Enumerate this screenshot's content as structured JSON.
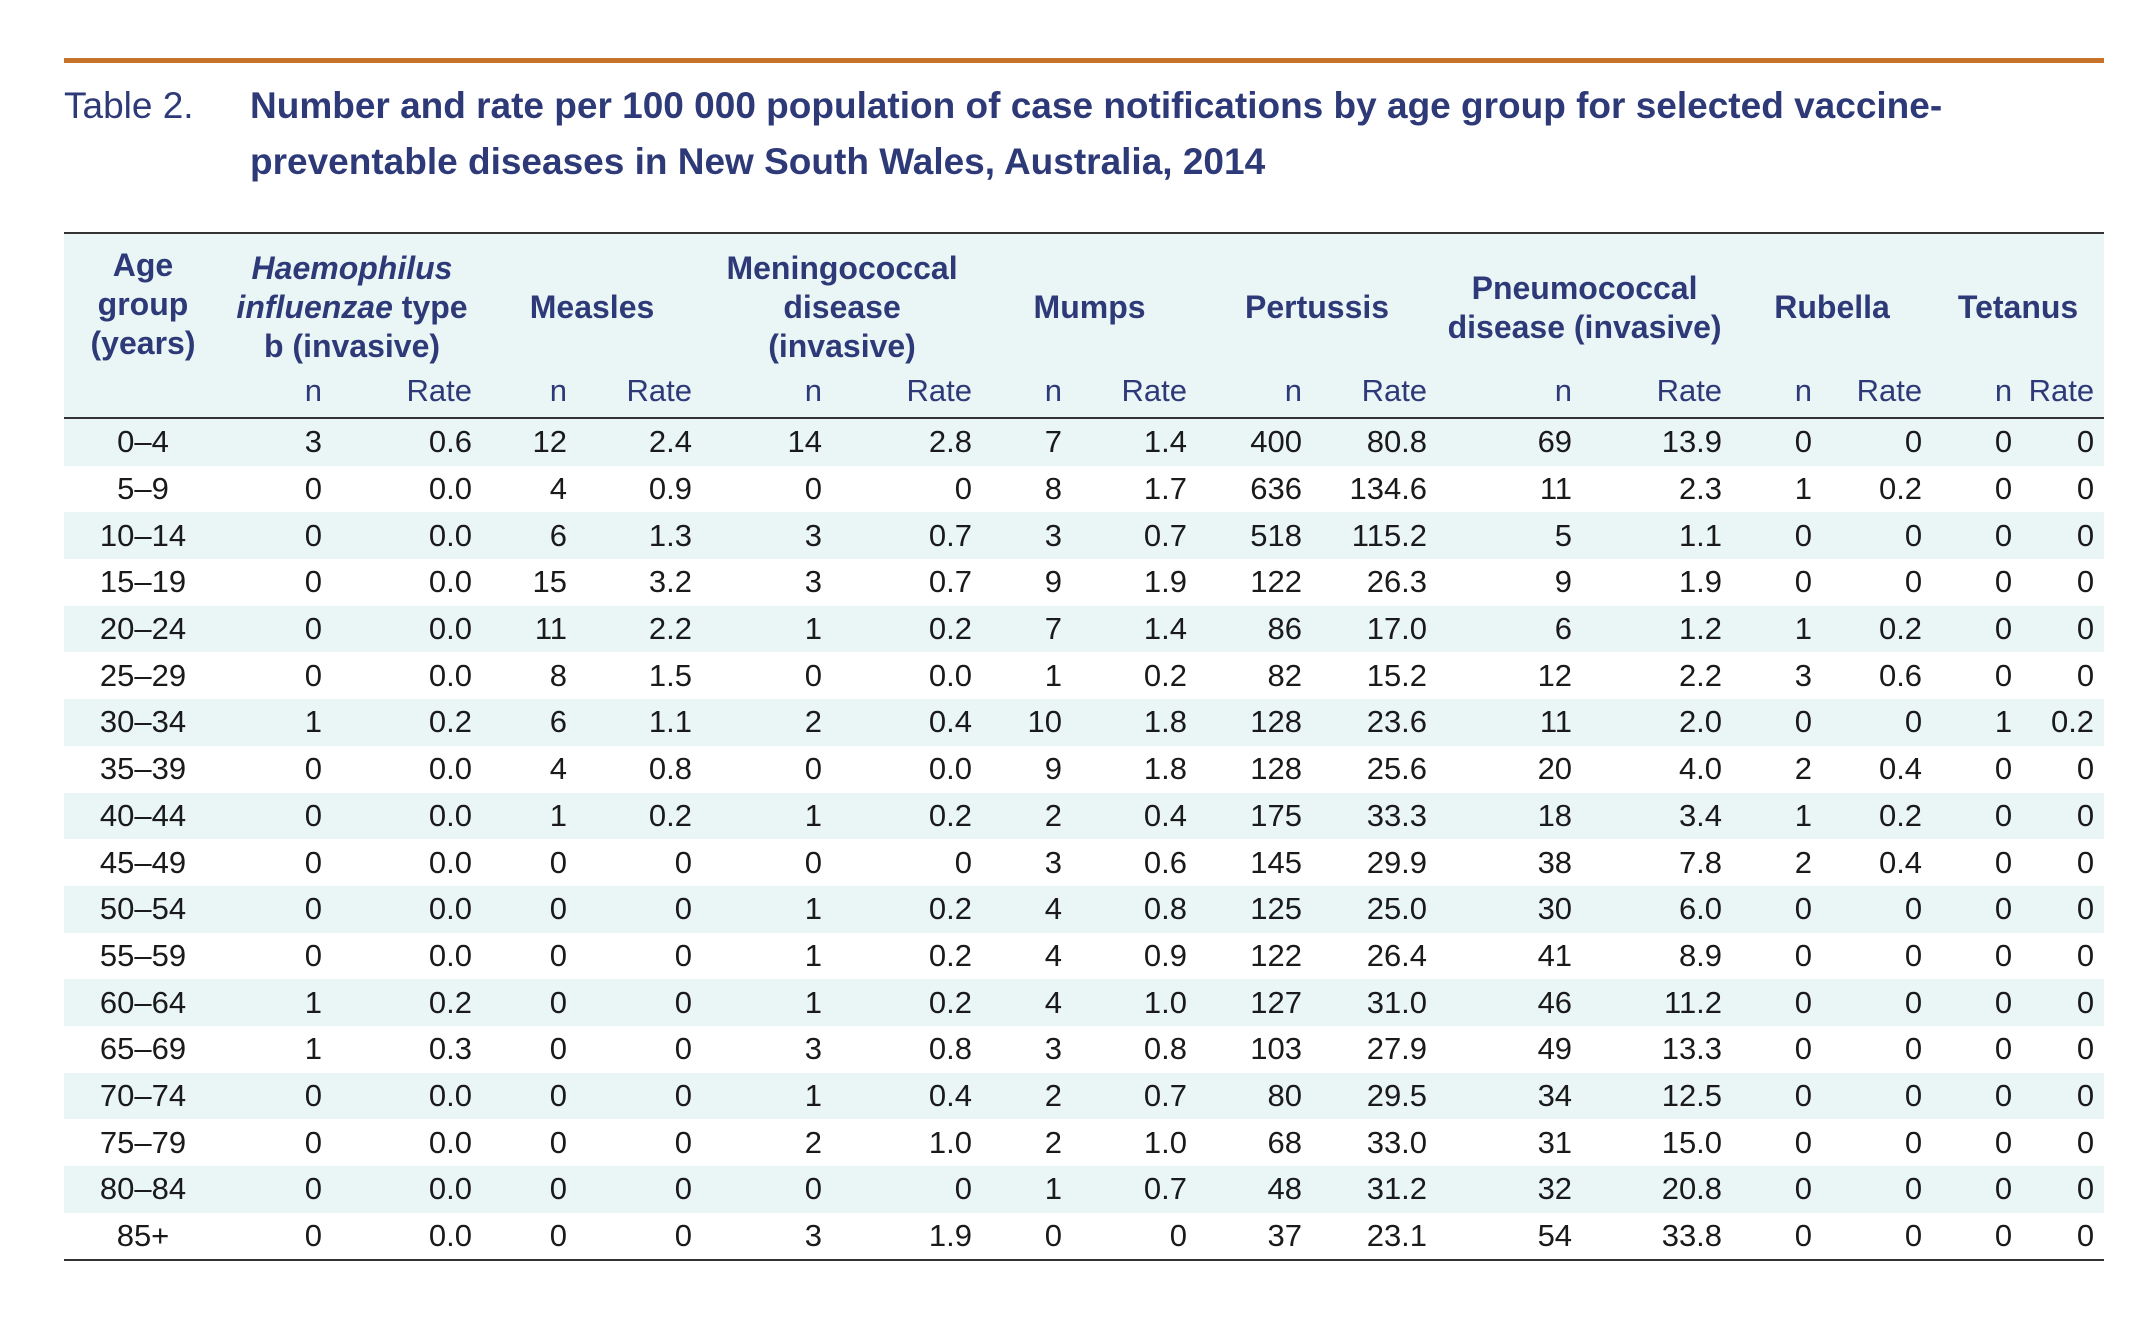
{
  "caption": {
    "label": "Table 2.",
    "title": "Number and rate per 100 000 population of case notifications by age group for selected vaccine-preventable diseases in New South Wales, Australia, 2014"
  },
  "header": {
    "age": "Age group (years)",
    "hib_italic": "Haemophilus influenzae",
    "hib_rest": " type b (invasive)",
    "measles": "Measles",
    "meningococcal": "Meningococcal disease (invasive)",
    "mumps": "Mumps",
    "pertussis": "Pertussis",
    "pneumococcal": "Pneumococcal disease (invasive)",
    "rubella": "Rubella",
    "tetanus": "Tetanus",
    "n": "n",
    "rate": "Rate"
  },
  "rows": [
    [
      "0–4",
      "3",
      "0.6",
      "12",
      "2.4",
      "14",
      "2.8",
      "7",
      "1.4",
      "400",
      "80.8",
      "69",
      "13.9",
      "0",
      "0",
      "0",
      "0"
    ],
    [
      "5–9",
      "0",
      "0.0",
      "4",
      "0.9",
      "0",
      "0",
      "8",
      "1.7",
      "636",
      "134.6",
      "11",
      "2.3",
      "1",
      "0.2",
      "0",
      "0"
    ],
    [
      "10–14",
      "0",
      "0.0",
      "6",
      "1.3",
      "3",
      "0.7",
      "3",
      "0.7",
      "518",
      "115.2",
      "5",
      "1.1",
      "0",
      "0",
      "0",
      "0"
    ],
    [
      "15–19",
      "0",
      "0.0",
      "15",
      "3.2",
      "3",
      "0.7",
      "9",
      "1.9",
      "122",
      "26.3",
      "9",
      "1.9",
      "0",
      "0",
      "0",
      "0"
    ],
    [
      "20–24",
      "0",
      "0.0",
      "11",
      "2.2",
      "1",
      "0.2",
      "7",
      "1.4",
      "86",
      "17.0",
      "6",
      "1.2",
      "1",
      "0.2",
      "0",
      "0"
    ],
    [
      "25–29",
      "0",
      "0.0",
      "8",
      "1.5",
      "0",
      "0.0",
      "1",
      "0.2",
      "82",
      "15.2",
      "12",
      "2.2",
      "3",
      "0.6",
      "0",
      "0"
    ],
    [
      "30–34",
      "1",
      "0.2",
      "6",
      "1.1",
      "2",
      "0.4",
      "10",
      "1.8",
      "128",
      "23.6",
      "11",
      "2.0",
      "0",
      "0",
      "1",
      "0.2"
    ],
    [
      "35–39",
      "0",
      "0.0",
      "4",
      "0.8",
      "0",
      "0.0",
      "9",
      "1.8",
      "128",
      "25.6",
      "20",
      "4.0",
      "2",
      "0.4",
      "0",
      "0"
    ],
    [
      "40–44",
      "0",
      "0.0",
      "1",
      "0.2",
      "1",
      "0.2",
      "2",
      "0.4",
      "175",
      "33.3",
      "18",
      "3.4",
      "1",
      "0.2",
      "0",
      "0"
    ],
    [
      "45–49",
      "0",
      "0.0",
      "0",
      "0",
      "0",
      "0",
      "3",
      "0.6",
      "145",
      "29.9",
      "38",
      "7.8",
      "2",
      "0.4",
      "0",
      "0"
    ],
    [
      "50–54",
      "0",
      "0.0",
      "0",
      "0",
      "1",
      "0.2",
      "4",
      "0.8",
      "125",
      "25.0",
      "30",
      "6.0",
      "0",
      "0",
      "0",
      "0"
    ],
    [
      "55–59",
      "0",
      "0.0",
      "0",
      "0",
      "1",
      "0.2",
      "4",
      "0.9",
      "122",
      "26.4",
      "41",
      "8.9",
      "0",
      "0",
      "0",
      "0"
    ],
    [
      "60–64",
      "1",
      "0.2",
      "0",
      "0",
      "1",
      "0.2",
      "4",
      "1.0",
      "127",
      "31.0",
      "46",
      "11.2",
      "0",
      "0",
      "0",
      "0"
    ],
    [
      "65–69",
      "1",
      "0.3",
      "0",
      "0",
      "3",
      "0.8",
      "3",
      "0.8",
      "103",
      "27.9",
      "49",
      "13.3",
      "0",
      "0",
      "0",
      "0"
    ],
    [
      "70–74",
      "0",
      "0.0",
      "0",
      "0",
      "1",
      "0.4",
      "2",
      "0.7",
      "80",
      "29.5",
      "34",
      "12.5",
      "0",
      "0",
      "0",
      "0"
    ],
    [
      "75–79",
      "0",
      "0.0",
      "0",
      "0",
      "2",
      "1.0",
      "2",
      "1.0",
      "68",
      "33.0",
      "31",
      "15.0",
      "0",
      "0",
      "0",
      "0"
    ],
    [
      "80–84",
      "0",
      "0.0",
      "0",
      "0",
      "0",
      "0",
      "1",
      "0.7",
      "48",
      "31.2",
      "32",
      "20.8",
      "0",
      "0",
      "0",
      "0"
    ],
    [
      "85+",
      "0",
      "0.0",
      "0",
      "0",
      "3",
      "1.9",
      "0",
      "0",
      "37",
      "23.1",
      "54",
      "33.8",
      "0",
      "0",
      "0",
      "0"
    ]
  ]
}
